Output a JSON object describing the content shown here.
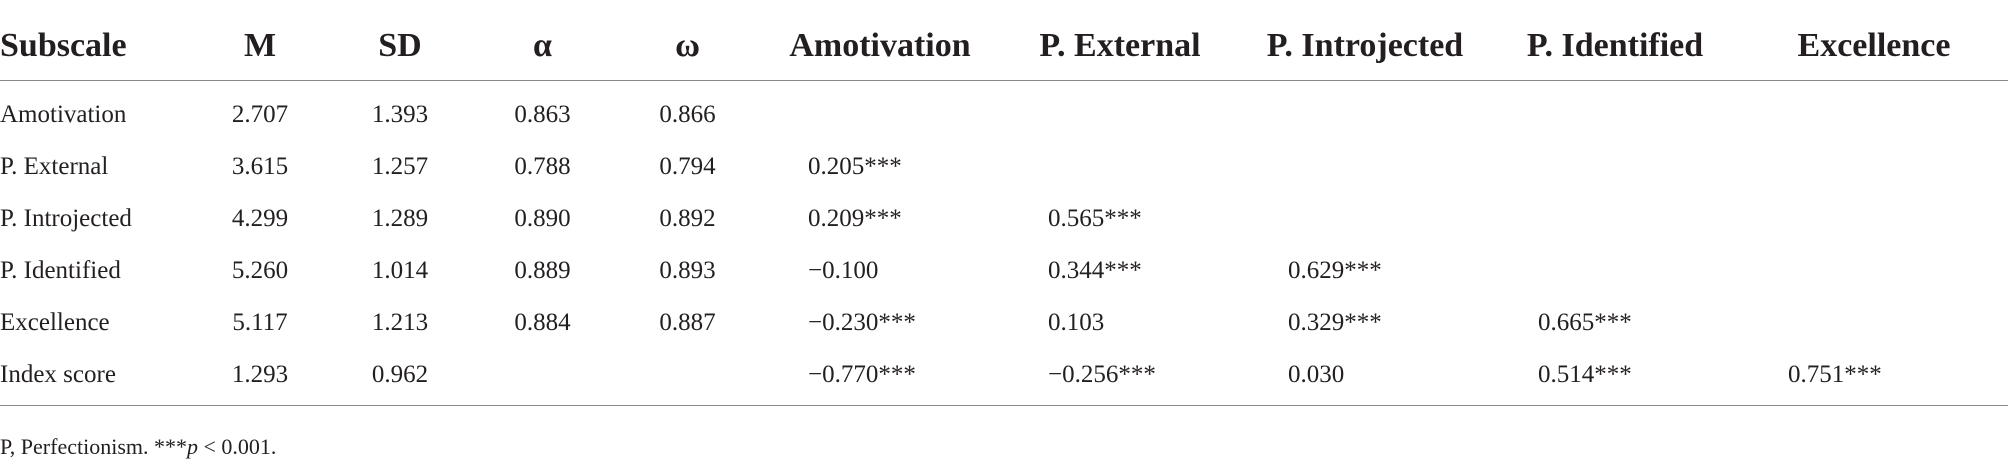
{
  "table": {
    "headers": [
      "Subscale",
      "M",
      "SD",
      "α",
      "ω",
      "Amotivation",
      "P. External",
      "P. Introjected",
      "P. Identified",
      "Excellence"
    ],
    "rows": [
      {
        "subscale": "Amotivation",
        "m": "2.707",
        "sd": "1.393",
        "alpha": "0.863",
        "omega": "0.866",
        "amotivation": "",
        "external": "",
        "introjected": "",
        "identified": "",
        "excellence": ""
      },
      {
        "subscale": "P. External",
        "m": "3.615",
        "sd": "1.257",
        "alpha": "0.788",
        "omega": "0.794",
        "amotivation": "0.205***",
        "external": "",
        "introjected": "",
        "identified": "",
        "excellence": ""
      },
      {
        "subscale": "P. Introjected",
        "m": "4.299",
        "sd": "1.289",
        "alpha": "0.890",
        "omega": "0.892",
        "amotivation": "0.209***",
        "external": "0.565***",
        "introjected": "",
        "identified": "",
        "excellence": ""
      },
      {
        "subscale": "P. Identified",
        "m": "5.260",
        "sd": "1.014",
        "alpha": "0.889",
        "omega": "0.893",
        "amotivation": "−0.100",
        "external": "0.344***",
        "introjected": "0.629***",
        "identified": "",
        "excellence": ""
      },
      {
        "subscale": "Excellence",
        "m": "5.117",
        "sd": "1.213",
        "alpha": "0.884",
        "omega": "0.887",
        "amotivation": "−0.230***",
        "external": "0.103",
        "introjected": "0.329***",
        "identified": "0.665***",
        "excellence": ""
      },
      {
        "subscale": "Index score",
        "m": "1.293",
        "sd": "0.962",
        "alpha": "",
        "omega": "",
        "amotivation": "−0.770***",
        "external": "−0.256***",
        "introjected": "0.030",
        "identified": "0.514***",
        "excellence": "0.751***"
      }
    ]
  },
  "footnote": {
    "prefix": "P, Perfectionism. ***",
    "p_symbol": "p",
    "suffix": " < 0.001."
  }
}
